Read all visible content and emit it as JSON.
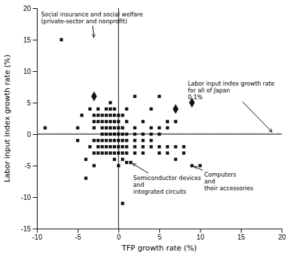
{
  "chart_data": {
    "type": "scatter",
    "xlabel": "TFP growth rate (%)",
    "ylabel": "Labor input index growth rate (%)",
    "xlim": [
      -10,
      20
    ],
    "ylim": [
      -15,
      20
    ],
    "xticks": [
      -10,
      -5,
      0,
      5,
      10,
      15,
      20
    ],
    "yticks": [
      -15,
      -10,
      -5,
      0,
      5,
      10,
      15,
      20
    ],
    "series": [
      {
        "marker": "square",
        "color": "#111111",
        "x": [
          -9,
          -7,
          -5,
          -5,
          -4.5,
          -4,
          -4,
          -3.5,
          -3.5,
          -3,
          -3,
          -3,
          -3,
          -3,
          -3,
          -2.5,
          -2.5,
          -2.5,
          -2.5,
          -2.5,
          -2.5,
          -2,
          -2,
          -2,
          -2,
          -2,
          -2,
          -2,
          -1.5,
          -1.5,
          -1.5,
          -1.5,
          -1.5,
          -1.5,
          -1.5,
          -1.5,
          -1,
          -1,
          -1,
          -1,
          -1,
          -1,
          -1,
          -1,
          -1,
          -0.5,
          -0.5,
          -0.5,
          -0.5,
          -0.5,
          -0.5,
          -0.5,
          -0.5,
          -0.5,
          0,
          0,
          0,
          0,
          0,
          0,
          0,
          0,
          0.5,
          0.5,
          0.5,
          0.5,
          0.5,
          0.5,
          0.5,
          1,
          1,
          1,
          1,
          1,
          1,
          1,
          1.5,
          2,
          2,
          2,
          2,
          2,
          2,
          3,
          3,
          3,
          3,
          3,
          4,
          4,
          4,
          4,
          4,
          5,
          5,
          5,
          5,
          5,
          6,
          6,
          6,
          6,
          7,
          7,
          7,
          8,
          8,
          9,
          10,
          0.5
        ],
        "values": [
          1,
          15,
          1,
          -1,
          3,
          -4,
          -7,
          4,
          -2,
          3,
          2,
          1,
          -1,
          -3,
          -5,
          4,
          3,
          2,
          -1,
          -2,
          -3,
          3,
          2,
          1,
          0,
          -1,
          -2,
          -3,
          4,
          3,
          2,
          1,
          0,
          -1,
          -2,
          -3,
          5,
          4,
          3,
          2,
          1,
          0,
          -1,
          -2,
          -3,
          4,
          3,
          2,
          1,
          0,
          -1,
          -2,
          -3,
          -4,
          3,
          2,
          1,
          0,
          -1,
          -2,
          -3,
          -5,
          3,
          1,
          0,
          -1,
          -2,
          -3,
          -4,
          4,
          2,
          0,
          -1,
          -2,
          -3,
          -4.5,
          -4.5,
          6,
          1,
          0,
          -1,
          -2,
          -3,
          2,
          0,
          -1,
          -2,
          -3,
          4,
          1,
          0,
          -1,
          -2,
          6,
          1,
          0,
          -2,
          -3,
          2,
          1,
          -2,
          -3,
          2,
          -2,
          -4,
          -2,
          -3,
          -5,
          -5,
          -11
        ]
      },
      {
        "marker": "diamond",
        "color": "#111111",
        "x": [
          -3,
          7,
          9
        ],
        "values": [
          6,
          4,
          5
        ]
      }
    ],
    "hlines": [
      {
        "value": 0,
        "color": "#000000"
      },
      {
        "value": 0.1,
        "color": "#666666",
        "line_style": "dotted"
      }
    ],
    "vlines": [
      {
        "value": 0,
        "color": "#000000"
      }
    ],
    "annotations": [
      {
        "text": [
          "Social insurance and social welfare",
          "(private-sector and nonprofit)"
        ],
        "xy": [
          -3,
          15
        ],
        "xytext": [
          -9.5,
          19.5
        ]
      },
      {
        "text": [
          "Semiconductor devices",
          "and",
          "integrated circuits"
        ],
        "xy": [
          1.5,
          -4.5
        ],
        "xytext": [
          1.8,
          -6.5
        ]
      },
      {
        "text": [
          "Computers",
          "and",
          "their accessories"
        ],
        "xy": [
          9,
          -5
        ],
        "xytext": [
          10.5,
          -6.0
        ]
      },
      {
        "text": [
          "Labor input index growth rate",
          "for all of Japan",
          "0.1%"
        ],
        "xy": [
          19,
          0.1
        ],
        "xytext": [
          8.5,
          8.5
        ]
      }
    ]
  }
}
